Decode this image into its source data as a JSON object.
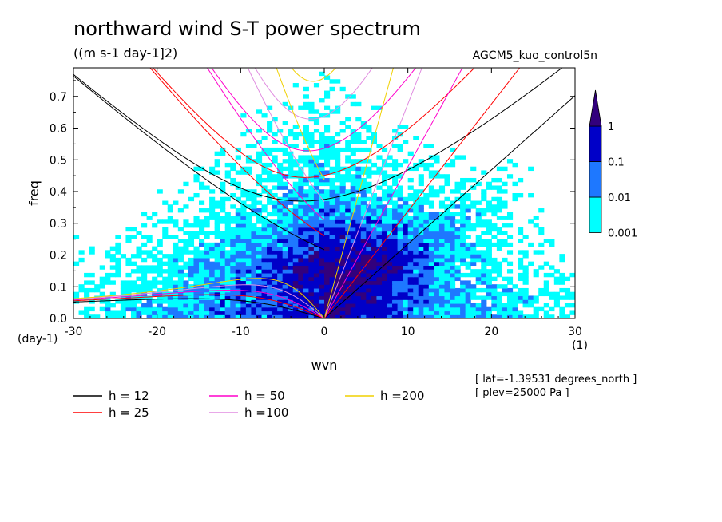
{
  "header": {
    "title": "northward wind S-T power spectrum",
    "units": "((m s-1 day-1]2)",
    "run_label": "AGCM5_kuo_control5n"
  },
  "info": {
    "lat": "[ lat=-1.39531 degrees_north ]",
    "plev": "[ plev=25000 Pa ]"
  },
  "chart_data": {
    "type": "heatmap",
    "title": "northward wind S-T power spectrum",
    "xlabel": "wvn",
    "ylabel": "freq",
    "x_unit": "(1)",
    "y_unit": "(day-1)",
    "xlim": [
      -30,
      30
    ],
    "ylim": [
      0,
      0.79
    ],
    "x_ticks": [
      -30,
      -20,
      -10,
      0,
      10,
      20,
      30
    ],
    "x_tick_labels": [
      "-30",
      "-20",
      "-10",
      "0",
      "10",
      "20",
      "30"
    ],
    "y_ticks": [
      0.0,
      0.1,
      0.2,
      0.3,
      0.4,
      0.5,
      0.6,
      0.7
    ],
    "y_tick_labels": [
      "0.0",
      "0.1",
      "0.2",
      "0.3",
      "0.4",
      "0.5",
      "0.6",
      "0.7"
    ],
    "colorbar": {
      "levels": [
        0.001,
        0.01,
        0.1,
        1
      ],
      "labels": [
        "0.001",
        "0.01",
        "0.1",
        "1"
      ],
      "colors": [
        "#00ffff",
        "#1e78ff",
        "#0000c8",
        "#32007d"
      ]
    },
    "dispersion_curves": [
      {
        "label": "h = 12",
        "h": 12,
        "color": "#000000"
      },
      {
        "label": "h = 25",
        "h": 25,
        "color": "#ff0000"
      },
      {
        "label": "h = 50",
        "h": 50,
        "color": "#ff00cc"
      },
      {
        "label": "h =100",
        "h": 100,
        "color": "#e08ce0"
      },
      {
        "label": "h =200",
        "h": 200,
        "color": "#f0d000"
      }
    ],
    "grid": false
  }
}
